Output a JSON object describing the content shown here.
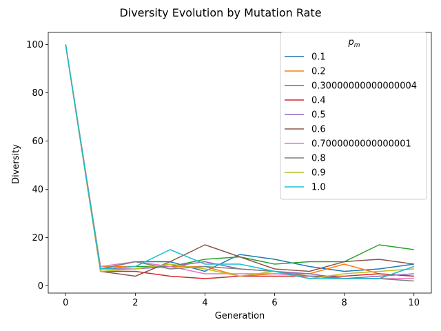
{
  "chart_data": {
    "type": "line",
    "title": "Diversity Evolution by Mutation Rate",
    "xlabel": "Generation",
    "ylabel": "Diversity",
    "xlim": [
      -0.5,
      10.5
    ],
    "ylim": [
      -3,
      105
    ],
    "xticks": [
      0,
      2,
      4,
      6,
      8,
      10
    ],
    "yticks": [
      0,
      20,
      40,
      60,
      80,
      100
    ],
    "grid": false,
    "legend": {
      "title": "p_m",
      "title_base": "p",
      "title_sub": "m",
      "placement": "upper right"
    },
    "x": [
      0,
      1,
      2,
      3,
      4,
      5,
      6,
      7,
      8,
      9,
      10
    ],
    "series": [
      {
        "name": "0.1",
        "color": "#1f77b4",
        "values": [
          100,
          7,
          10,
          10,
          6,
          13,
          11,
          8,
          6,
          7,
          9
        ]
      },
      {
        "name": "0.2",
        "color": "#ff7f0e",
        "values": [
          100,
          8,
          8,
          8,
          8,
          4,
          5,
          5,
          9,
          5,
          4
        ]
      },
      {
        "name": "0.30000000000000004",
        "color": "#2ca02c",
        "values": [
          100,
          7,
          8,
          8,
          11,
          12,
          9,
          10,
          10,
          17,
          15
        ]
      },
      {
        "name": "0.4",
        "color": "#d62728",
        "values": [
          100,
          6,
          6,
          4,
          3,
          4,
          4,
          4,
          4,
          5,
          4
        ]
      },
      {
        "name": "0.5",
        "color": "#9467bd",
        "values": [
          100,
          7,
          7,
          8,
          10,
          7,
          6,
          5,
          3,
          4,
          5
        ]
      },
      {
        "name": "0.6",
        "color": "#8c564b",
        "values": [
          100,
          6,
          4,
          10,
          17,
          12,
          7,
          6,
          10,
          11,
          9
        ]
      },
      {
        "name": "0.7000000000000001",
        "color": "#e377c2",
        "values": [
          100,
          8,
          10,
          8,
          5,
          5,
          5,
          4,
          3,
          3,
          3
        ]
      },
      {
        "name": "0.8",
        "color": "#7f7f7f",
        "values": [
          100,
          7,
          10,
          7,
          8,
          7,
          6,
          4,
          3,
          3,
          2
        ]
      },
      {
        "name": "0.9",
        "color": "#bcbd22",
        "values": [
          100,
          6,
          7,
          9,
          7,
          4,
          6,
          3,
          5,
          6,
          7
        ]
      },
      {
        "name": "1.0",
        "color": "#17becf",
        "values": [
          100,
          7,
          8,
          15,
          9,
          9,
          6,
          3,
          3,
          3,
          8
        ]
      }
    ]
  }
}
